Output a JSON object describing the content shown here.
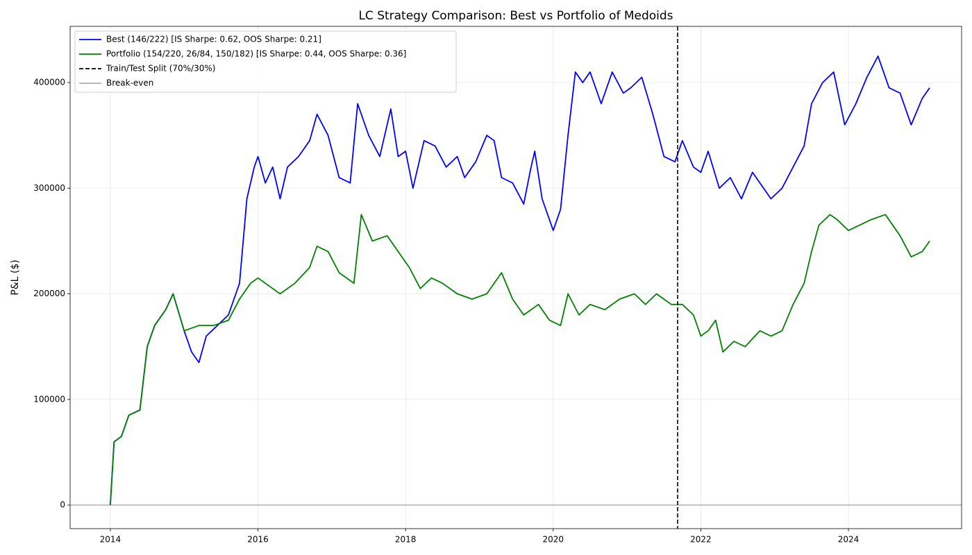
{
  "chart_data": {
    "type": "line",
    "title": "LC Strategy Comparison: Best vs Portfolio of Medoids",
    "y_label": "P&L ($)",
    "xlim": [
      2013.455,
      2025.533
    ],
    "xticks": [
      2014,
      2016,
      2018,
      2020,
      2022,
      2024
    ],
    "ylim": [
      -22300,
      453200
    ],
    "yticks": [
      0,
      100000,
      200000,
      300000,
      400000
    ],
    "grid": true,
    "legend": "upper left",
    "series": [
      {
        "name": "Best (146/222) [IS Sharpe: 0.62, OOS Sharpe: 0.21]",
        "color": "#0000ff",
        "x": [
          2014.0,
          2014.05,
          2014.15,
          2014.25,
          2014.4,
          2014.5,
          2014.6,
          2014.75,
          2014.85,
          2015.0,
          2015.1,
          2015.2,
          2015.3,
          2015.45,
          2015.6,
          2015.75,
          2015.85,
          2015.95,
          2016.0,
          2016.1,
          2016.2,
          2016.3,
          2016.4,
          2016.55,
          2016.7,
          2016.8,
          2016.95,
          2017.1,
          2017.25,
          2017.35,
          2017.5,
          2017.65,
          2017.8,
          2017.9,
          2018.0,
          2018.1,
          2018.25,
          2018.4,
          2018.55,
          2018.7,
          2018.8,
          2018.95,
          2019.1,
          2019.2,
          2019.3,
          2019.45,
          2019.6,
          2019.7,
          2019.75,
          2019.85,
          2020.0,
          2020.1,
          2020.2,
          2020.3,
          2020.4,
          2020.5,
          2020.65,
          2020.8,
          2020.95,
          2021.05,
          2021.2,
          2021.35,
          2021.5,
          2021.65,
          2021.75,
          2021.9,
          2022.0,
          2022.1,
          2022.25,
          2022.4,
          2022.55,
          2022.7,
          2022.85,
          2022.95,
          2023.1,
          2023.25,
          2023.4,
          2023.5,
          2023.65,
          2023.8,
          2023.95,
          2024.1,
          2024.25,
          2024.4,
          2024.55,
          2024.7,
          2024.85,
          2025.0,
          2025.1
        ],
        "values": [
          0,
          60000,
          65000,
          85000,
          90000,
          150000,
          170000,
          185000,
          200000,
          165000,
          145000,
          135000,
          160000,
          170000,
          180000,
          210000,
          290000,
          320000,
          330000,
          305000,
          320000,
          290000,
          320000,
          330000,
          345000,
          370000,
          350000,
          310000,
          305000,
          380000,
          350000,
          330000,
          375000,
          330000,
          335000,
          300000,
          345000,
          340000,
          320000,
          330000,
          310000,
          325000,
          350000,
          345000,
          310000,
          305000,
          285000,
          320000,
          335000,
          290000,
          260000,
          280000,
          350000,
          410000,
          400000,
          410000,
          380000,
          410000,
          390000,
          395000,
          405000,
          370000,
          330000,
          325000,
          345000,
          320000,
          315000,
          335000,
          300000,
          310000,
          290000,
          315000,
          300000,
          290000,
          300000,
          320000,
          340000,
          380000,
          400000,
          410000,
          360000,
          380000,
          405000,
          425000,
          395000,
          390000,
          360000,
          385000,
          395000
        ]
      },
      {
        "name": "Portfolio (154/220, 26/84, 150/182) [IS Sharpe: 0.44, OOS Sharpe: 0.36]",
        "color": "#008000",
        "x": [
          2014.0,
          2014.05,
          2014.15,
          2014.25,
          2014.4,
          2014.5,
          2014.6,
          2014.75,
          2014.85,
          2015.0,
          2015.2,
          2015.4,
          2015.6,
          2015.75,
          2015.9,
          2016.0,
          2016.1,
          2016.3,
          2016.5,
          2016.7,
          2016.8,
          2016.95,
          2017.1,
          2017.3,
          2017.4,
          2017.55,
          2017.75,
          2017.9,
          2018.05,
          2018.2,
          2018.35,
          2018.5,
          2018.7,
          2018.9,
          2019.1,
          2019.3,
          2019.45,
          2019.6,
          2019.8,
          2019.95,
          2020.1,
          2020.2,
          2020.35,
          2020.5,
          2020.7,
          2020.9,
          2021.1,
          2021.25,
          2021.4,
          2021.6,
          2021.75,
          2021.9,
          2022.0,
          2022.1,
          2022.2,
          2022.3,
          2022.45,
          2022.6,
          2022.8,
          2022.95,
          2023.1,
          2023.25,
          2023.4,
          2023.5,
          2023.6,
          2023.75,
          2023.85,
          2024.0,
          2024.15,
          2024.3,
          2024.5,
          2024.7,
          2024.85,
          2025.0,
          2025.1
        ],
        "values": [
          0,
          60000,
          65000,
          85000,
          90000,
          150000,
          170000,
          185000,
          200000,
          165000,
          170000,
          170000,
          175000,
          195000,
          210000,
          215000,
          210000,
          200000,
          210000,
          225000,
          245000,
          240000,
          220000,
          210000,
          275000,
          250000,
          255000,
          240000,
          225000,
          205000,
          215000,
          210000,
          200000,
          195000,
          200000,
          220000,
          195000,
          180000,
          190000,
          175000,
          170000,
          200000,
          180000,
          190000,
          185000,
          195000,
          200000,
          190000,
          200000,
          190000,
          190000,
          180000,
          160000,
          165000,
          175000,
          145000,
          155000,
          150000,
          165000,
          160000,
          165000,
          190000,
          210000,
          240000,
          265000,
          275000,
          270000,
          260000,
          265000,
          270000,
          275000,
          255000,
          235000,
          240000,
          250000
        ]
      }
    ],
    "vlines": [
      {
        "name": "Train/Test Split (70%/30%)",
        "value": 2021.686,
        "color": "#000000"
      }
    ],
    "hlines": [
      {
        "name": "Break-even",
        "value": 0,
        "color": "#b0b0b0"
      }
    ]
  }
}
